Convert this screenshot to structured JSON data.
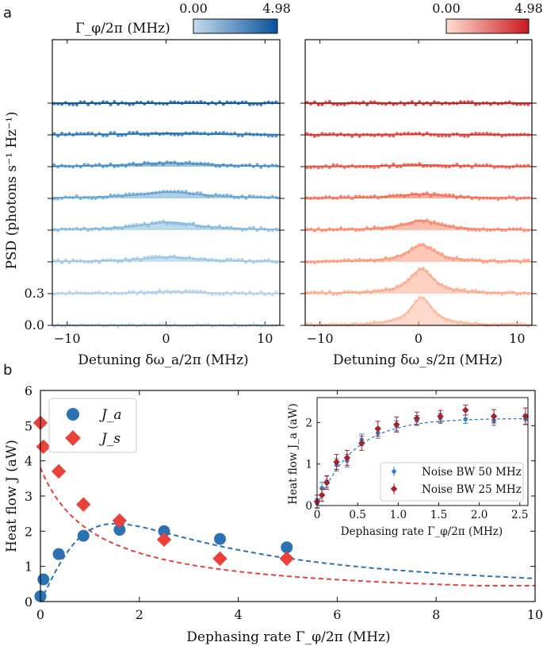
{
  "panel_labels": {
    "a": "a",
    "b": "b"
  },
  "colorbars": {
    "left": {
      "label": "Γ_φ/2π (MHz)",
      "min_label": "0.00",
      "max_label": "4.98",
      "color_light": "#c6dbef",
      "color_dark": "#08519c"
    },
    "right": {
      "min_label": "0.00",
      "max_label": "4.98",
      "color_light": "#fee0d2",
      "color_dark": "#cb181d"
    }
  },
  "chart_data": [
    {
      "id": "a-left",
      "type": "line",
      "title": "",
      "xlabel": "Detuning δω_a/2π (MHz)",
      "ylabel": "PSD (photons s⁻¹ Hz⁻¹)",
      "xlim": [
        -11.5,
        11.5
      ],
      "ylim": [
        0.0,
        2.7
      ],
      "offset": 0.3,
      "xticks": [
        -10,
        0,
        10
      ],
      "xtick_labels": [
        "−10",
        "0",
        "10"
      ],
      "yticks": [
        0.0,
        0.3
      ],
      "ytick_labels": [
        "0.0",
        "0.3"
      ],
      "series": [
        {
          "baseline": 0.0,
          "amplitude": 0.0,
          "width": 3.0,
          "color": "#c6dbef"
        },
        {
          "baseline": 0.3,
          "amplitude": 0.02,
          "width": 3.0,
          "color": "#b3d0ea"
        },
        {
          "baseline": 0.6,
          "amplitude": 0.045,
          "width": 3.5,
          "color": "#9ec7e4"
        },
        {
          "baseline": 0.9,
          "amplitude": 0.075,
          "width": 3.5,
          "color": "#86b9dd"
        },
        {
          "baseline": 1.2,
          "amplitude": 0.06,
          "width": 4.0,
          "color": "#6aa6d3"
        },
        {
          "baseline": 1.5,
          "amplitude": 0.035,
          "width": 4.5,
          "color": "#4a8fc6"
        },
        {
          "baseline": 1.8,
          "amplitude": 0.015,
          "width": 5.0,
          "color": "#2c74b3"
        },
        {
          "baseline": 2.1,
          "amplitude": 0.0,
          "width": 5.0,
          "color": "#0f5aa0"
        }
      ]
    },
    {
      "id": "a-right",
      "type": "line",
      "title": "",
      "xlabel": "Detuning δω_s/2π (MHz)",
      "xlim": [
        -11.5,
        11.5
      ],
      "ylim": [
        0.0,
        2.7
      ],
      "offset": 0.3,
      "xticks": [
        -10,
        0,
        10
      ],
      "xtick_labels": [
        "−10",
        "0",
        "10"
      ],
      "series": [
        {
          "baseline": 0.0,
          "amplitude": 0.26,
          "width": 1.4,
          "color": "#fcbba1"
        },
        {
          "baseline": 0.3,
          "amplitude": 0.23,
          "width": 1.5,
          "color": "#fcaa8e"
        },
        {
          "baseline": 0.6,
          "amplitude": 0.16,
          "width": 1.7,
          "color": "#fb9a7c"
        },
        {
          "baseline": 0.9,
          "amplitude": 0.09,
          "width": 2.2,
          "color": "#f8866a"
        },
        {
          "baseline": 1.2,
          "amplitude": 0.04,
          "width": 3.0,
          "color": "#f27058"
        },
        {
          "baseline": 1.5,
          "amplitude": 0.015,
          "width": 4.0,
          "color": "#e65545"
        },
        {
          "baseline": 1.8,
          "amplitude": 0.005,
          "width": 5.0,
          "color": "#d93a32"
        },
        {
          "baseline": 2.1,
          "amplitude": 0.0,
          "width": 5.0,
          "color": "#c42424"
        }
      ]
    },
    {
      "id": "b-main",
      "type": "scatter",
      "xlabel": "Dephasing rate Γ_φ/2π (MHz)",
      "ylabel": "Heat flow J (aW)",
      "xlim": [
        0,
        10
      ],
      "ylim": [
        0,
        6
      ],
      "xticks": [
        0,
        2,
        4,
        6,
        8,
        10
      ],
      "yticks": [
        0,
        1,
        2,
        3,
        4,
        5,
        6
      ],
      "legend": "top-left",
      "series": [
        {
          "name": "J_a",
          "marker": "circle",
          "color": "#2b72b5",
          "x": [
            0.0,
            0.06,
            0.37,
            0.87,
            1.6,
            2.5,
            3.63,
            4.98
          ],
          "y": [
            0.15,
            0.63,
            1.35,
            1.87,
            2.04,
            2.0,
            1.78,
            1.54
          ]
        },
        {
          "name": "J_s",
          "marker": "diamond",
          "color": "#e8423b",
          "x": [
            0.0,
            0.06,
            0.37,
            0.87,
            1.6,
            2.5,
            3.63,
            4.98
          ],
          "y": [
            5.08,
            4.4,
            3.7,
            2.76,
            2.3,
            1.76,
            1.22,
            1.22
          ]
        }
      ],
      "fits": [
        {
          "name": "J_a fit",
          "color": "#2b72b5",
          "dash": "dashed"
        },
        {
          "name": "J_s fit",
          "color": "#e8423b",
          "dash": "dashed"
        }
      ]
    },
    {
      "id": "b-inset",
      "type": "scatter",
      "xlabel": "Dephasing rate Γ_φ/2π (MHz)",
      "ylabel": "Heat flow J_a (aW)",
      "xlim": [
        0,
        2.6
      ],
      "ylim": [
        0,
        2.6
      ],
      "xticks": [
        0,
        0.5,
        1.0,
        1.5,
        2.0,
        2.5
      ],
      "xtick_labels": [
        "0",
        "0.5",
        "1.0",
        "1.5",
        "2.0",
        "2.5"
      ],
      "yticks": [
        0,
        1,
        2
      ],
      "legend": "bottom-right",
      "series": [
        {
          "name": "Noise BW 50 MHz",
          "marker": "circle",
          "color": "#3a7fc1",
          "x": [
            0.0,
            0.06,
            0.12,
            0.24,
            0.37,
            0.55,
            0.75,
            0.98,
            1.23,
            1.52,
            1.83,
            2.18,
            2.57
          ],
          "y": [
            0.05,
            0.42,
            0.58,
            0.98,
            1.08,
            1.58,
            1.75,
            1.92,
            2.05,
            2.1,
            2.08,
            2.05,
            2.08
          ],
          "err": [
            0.12,
            0.14,
            0.14,
            0.15,
            0.15,
            0.14,
            0.13,
            0.12,
            0.12,
            0.12,
            0.1,
            0.12,
            0.12
          ]
        },
        {
          "name": "Noise BW 25 MHz",
          "marker": "diamond",
          "color": "#a5232d",
          "x": [
            0.0,
            0.06,
            0.12,
            0.24,
            0.37,
            0.55,
            0.75,
            0.98,
            1.23,
            1.52,
            1.83,
            2.18,
            2.57
          ],
          "y": [
            0.1,
            0.25,
            0.55,
            1.05,
            1.15,
            1.5,
            1.85,
            1.95,
            2.1,
            2.15,
            2.3,
            2.15,
            2.15
          ],
          "err": [
            0.15,
            0.15,
            0.16,
            0.18,
            0.18,
            0.17,
            0.18,
            0.18,
            0.15,
            0.14,
            0.12,
            0.16,
            0.2
          ]
        }
      ],
      "fits": [
        {
          "name": "inset fit",
          "color": "#3a7fc1",
          "dash": "dashed"
        }
      ]
    }
  ]
}
